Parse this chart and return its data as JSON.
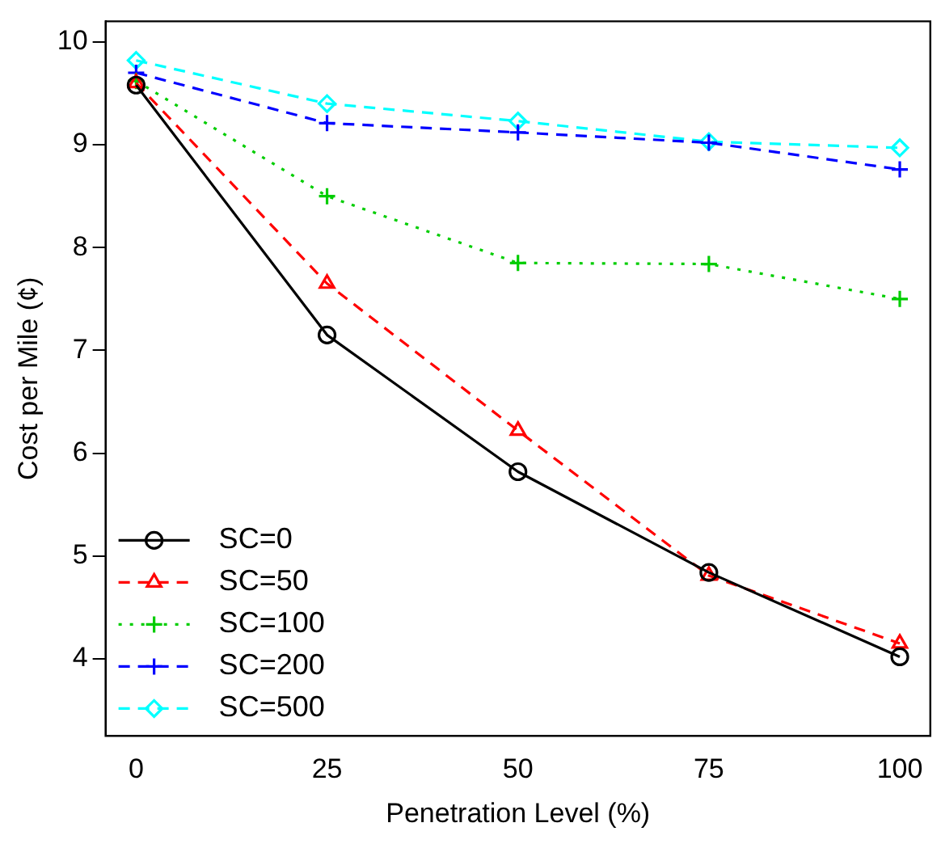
{
  "chart_data": {
    "type": "line",
    "xlabel": "Penetration Level (%)",
    "ylabel": "Cost per Mile (¢)",
    "x": [
      0,
      25,
      50,
      75,
      100
    ],
    "xlim": [
      -4,
      104
    ],
    "xticks": [
      0,
      25,
      50,
      75,
      100
    ],
    "ylim": [
      3.25,
      10.2
    ],
    "yticks": [
      4,
      5,
      6,
      7,
      8,
      9,
      10
    ],
    "grid": false,
    "legend": "bottom left",
    "series": [
      {
        "name": "SC=0",
        "color": "#000000",
        "values": [
          9.58,
          7.15,
          5.82,
          4.84,
          4.02
        ],
        "marker": "circle",
        "line_style": "solid"
      },
      {
        "name": "SC=50",
        "color": "#ff0000",
        "values": [
          9.6,
          7.65,
          6.22,
          4.81,
          4.15
        ],
        "marker": "triangle",
        "line_style": "dashed"
      },
      {
        "name": "SC=100",
        "color": "#00cd00",
        "values": [
          9.62,
          8.5,
          7.85,
          7.84,
          7.5
        ],
        "marker": "cross",
        "line_style": "dotted"
      },
      {
        "name": "SC=200",
        "color": "#0000ff",
        "values": [
          9.7,
          9.21,
          9.12,
          9.02,
          8.76
        ],
        "marker": "cross",
        "line_style": "dashed"
      },
      {
        "name": "SC=500",
        "color": "#00ffff",
        "values": [
          9.82,
          9.4,
          9.23,
          9.03,
          8.97
        ],
        "marker": "diamond",
        "line_style": "dashed"
      }
    ]
  }
}
